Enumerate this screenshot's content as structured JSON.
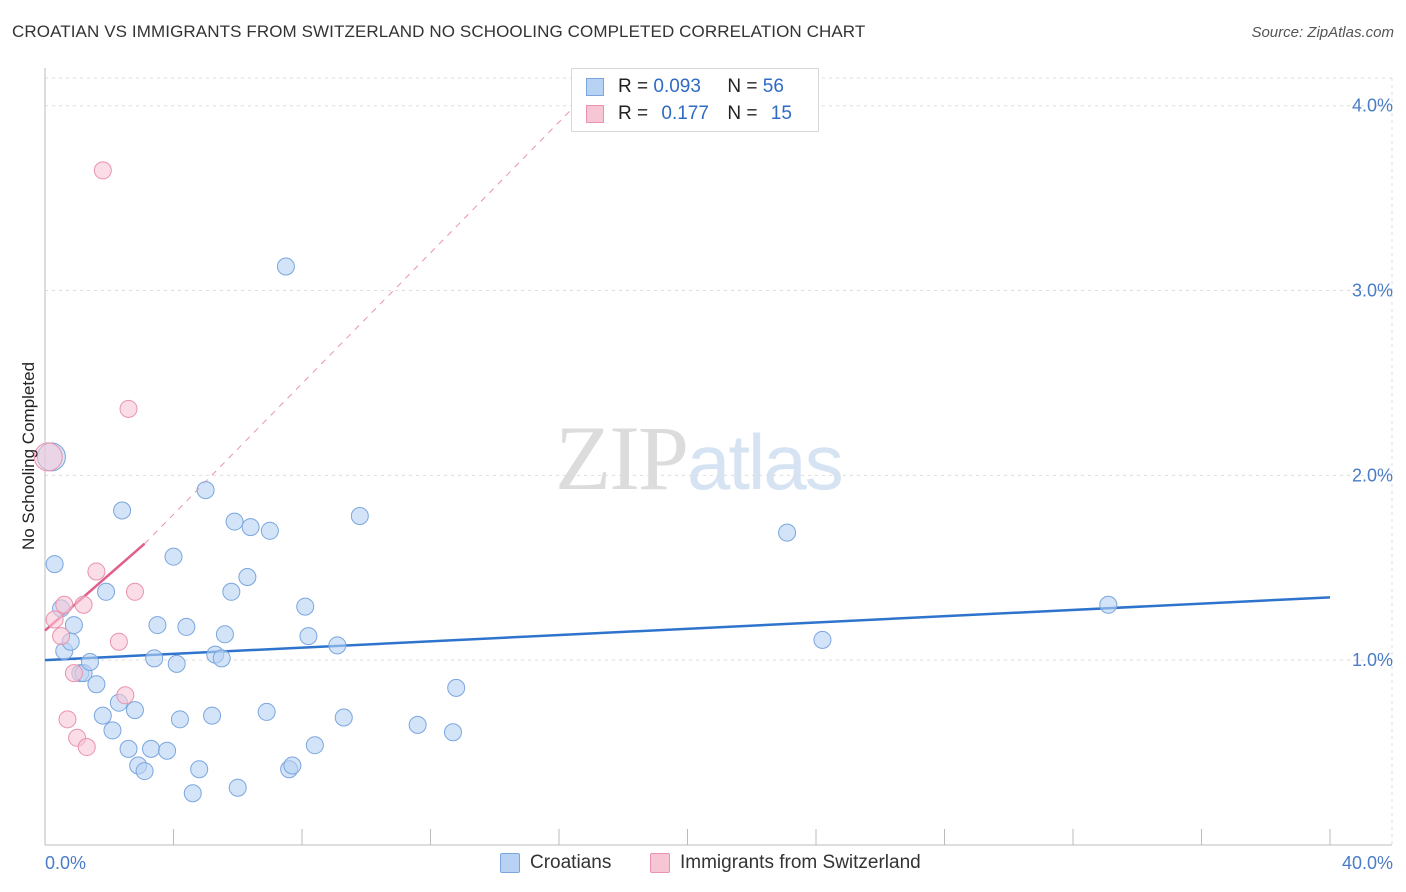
{
  "header": {
    "title": "CROATIAN VS IMMIGRANTS FROM SWITZERLAND NO SCHOOLING COMPLETED CORRELATION CHART",
    "source": "Source: ZipAtlas.com"
  },
  "watermark": {
    "zip": "ZIP",
    "atlas": "atlas"
  },
  "legend": {
    "rows": [
      {
        "r_label": "R = ",
        "r_value": "0.093",
        "n_label": "N = ",
        "n_value": "56"
      },
      {
        "r_label": "R = ",
        "r_value": "0.177",
        "n_label": "N = ",
        "n_value": "15"
      }
    ]
  },
  "bottom_legend": {
    "series1": "Croatians",
    "series2": "Immigrants from Switzerland"
  },
  "colors": {
    "blue_fill": "#b7d2f3",
    "blue_stroke": "#7aa6de",
    "blue_line": "#2e74cc",
    "pink_fill": "#f7c6d5",
    "pink_stroke": "#e993ae",
    "pink_line": "#e0608a",
    "grid": "#dddddd",
    "axis_text": "#4a7cc7"
  },
  "chart_data": {
    "type": "scatter",
    "title": "CROATIAN VS IMMIGRANTS FROM SWITZERLAND NO SCHOOLING COMPLETED CORRELATION CHART",
    "xlabel": "",
    "ylabel": "No Schooling Completed",
    "xlim": [
      0,
      40
    ],
    "ylim": [
      0,
      4.15
    ],
    "x_tick_labels": [
      "0.0%",
      "40.0%"
    ],
    "y_ticks": [
      1.0,
      2.0,
      3.0,
      4.0
    ],
    "y_tick_labels": [
      "1.0%",
      "2.0%",
      "3.0%",
      "4.0%"
    ],
    "grid": true,
    "legend_position": "top-center",
    "series": [
      {
        "name": "Croatians",
        "color": "blue",
        "r": 0.093,
        "n": 56,
        "trend": {
          "x": [
            0,
            40
          ],
          "y": [
            1.0,
            1.34
          ]
        },
        "points": [
          {
            "x": 0.2,
            "y": 2.1,
            "big": true
          },
          {
            "x": 0.3,
            "y": 1.52
          },
          {
            "x": 0.5,
            "y": 1.28
          },
          {
            "x": 0.6,
            "y": 1.05
          },
          {
            "x": 0.8,
            "y": 1.1
          },
          {
            "x": 0.9,
            "y": 1.19
          },
          {
            "x": 1.1,
            "y": 0.93
          },
          {
            "x": 1.2,
            "y": 0.93
          },
          {
            "x": 1.4,
            "y": 0.99
          },
          {
            "x": 1.6,
            "y": 0.87
          },
          {
            "x": 1.8,
            "y": 0.7
          },
          {
            "x": 1.9,
            "y": 1.37
          },
          {
            "x": 2.1,
            "y": 0.62
          },
          {
            "x": 2.3,
            "y": 0.77
          },
          {
            "x": 2.4,
            "y": 1.81
          },
          {
            "x": 2.6,
            "y": 0.52
          },
          {
            "x": 2.8,
            "y": 0.73
          },
          {
            "x": 2.9,
            "y": 0.43
          },
          {
            "x": 3.1,
            "y": 0.4
          },
          {
            "x": 3.3,
            "y": 0.52
          },
          {
            "x": 3.4,
            "y": 1.01
          },
          {
            "x": 3.5,
            "y": 1.19
          },
          {
            "x": 3.8,
            "y": 0.51
          },
          {
            "x": 4.0,
            "y": 1.56
          },
          {
            "x": 4.1,
            "y": 0.98
          },
          {
            "x": 4.2,
            "y": 0.68
          },
          {
            "x": 4.4,
            "y": 1.18
          },
          {
            "x": 4.6,
            "y": 0.28
          },
          {
            "x": 4.8,
            "y": 0.41
          },
          {
            "x": 5.0,
            "y": 1.92
          },
          {
            "x": 5.2,
            "y": 0.7
          },
          {
            "x": 5.3,
            "y": 1.03
          },
          {
            "x": 5.5,
            "y": 1.01
          },
          {
            "x": 5.6,
            "y": 1.14
          },
          {
            "x": 5.8,
            "y": 1.37
          },
          {
            "x": 5.9,
            "y": 1.75
          },
          {
            "x": 6.0,
            "y": 0.31
          },
          {
            "x": 6.3,
            "y": 1.45
          },
          {
            "x": 6.4,
            "y": 1.72
          },
          {
            "x": 6.9,
            "y": 0.72
          },
          {
            "x": 7.0,
            "y": 1.7
          },
          {
            "x": 7.5,
            "y": 3.13
          },
          {
            "x": 7.6,
            "y": 0.41
          },
          {
            "x": 7.7,
            "y": 0.43
          },
          {
            "x": 8.1,
            "y": 1.29
          },
          {
            "x": 8.2,
            "y": 1.13
          },
          {
            "x": 8.4,
            "y": 0.54
          },
          {
            "x": 9.1,
            "y": 1.08
          },
          {
            "x": 9.3,
            "y": 0.69
          },
          {
            "x": 9.8,
            "y": 1.78
          },
          {
            "x": 11.6,
            "y": 0.65
          },
          {
            "x": 12.7,
            "y": 0.61
          },
          {
            "x": 12.8,
            "y": 0.85
          },
          {
            "x": 23.1,
            "y": 1.69
          },
          {
            "x": 24.2,
            "y": 1.11
          },
          {
            "x": 33.1,
            "y": 1.3
          }
        ]
      },
      {
        "name": "Immigrants from Switzerland",
        "color": "pink",
        "r": 0.177,
        "n": 15,
        "trend": {
          "x": [
            0,
            3.1
          ],
          "y": [
            1.16,
            1.63
          ]
        },
        "trend_extension": {
          "x": [
            3.1,
            16.5
          ],
          "y": [
            1.63,
            4.0
          ]
        },
        "points": [
          {
            "x": 0.1,
            "y": 2.1,
            "big": true
          },
          {
            "x": 0.3,
            "y": 1.22
          },
          {
            "x": 0.5,
            "y": 1.13
          },
          {
            "x": 0.6,
            "y": 1.3
          },
          {
            "x": 0.7,
            "y": 0.68
          },
          {
            "x": 0.9,
            "y": 0.93
          },
          {
            "x": 1.0,
            "y": 0.58
          },
          {
            "x": 1.2,
            "y": 1.3
          },
          {
            "x": 1.3,
            "y": 0.53
          },
          {
            "x": 1.6,
            "y": 1.48
          },
          {
            "x": 1.8,
            "y": 3.65
          },
          {
            "x": 2.3,
            "y": 1.1
          },
          {
            "x": 2.5,
            "y": 0.81
          },
          {
            "x": 2.6,
            "y": 2.36
          },
          {
            "x": 2.8,
            "y": 1.37
          }
        ]
      }
    ]
  }
}
